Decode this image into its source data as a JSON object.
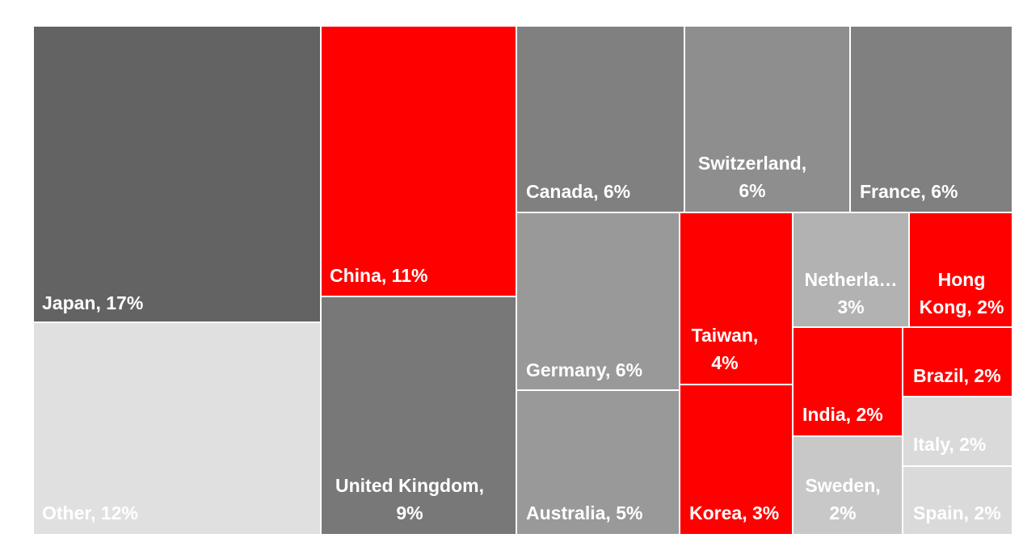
{
  "chart_data": {
    "type": "treemap",
    "title": "",
    "colors": {
      "highlight": "#ff0000",
      "gray_darkest": "#636363",
      "gray_dark": "#787878",
      "gray_mid": "#808080",
      "gray_mid_light": "#8e8e8e",
      "gray_light": "#999999",
      "gray_lighter": "#b2b2b2",
      "gray_pale": "#c8c8c8",
      "gray_palest": "#dadada",
      "gray_other": "#e0e0e0"
    },
    "items": [
      {
        "name": "Japan",
        "value": 17,
        "label_lines": [
          "Japan, 17%"
        ],
        "color_key": "gray_darkest"
      },
      {
        "name": "Other",
        "value": 12,
        "label_lines": [
          "Other, 12%"
        ],
        "color_key": "gray_other"
      },
      {
        "name": "China",
        "value": 11,
        "label_lines": [
          "China, 11%"
        ],
        "color_key": "highlight"
      },
      {
        "name": "United Kingdom",
        "value": 9,
        "label_lines": [
          "United Kingdom,",
          "9%"
        ],
        "color_key": "gray_dark"
      },
      {
        "name": "Canada",
        "value": 6,
        "label_lines": [
          "Canada, 6%"
        ],
        "color_key": "gray_mid"
      },
      {
        "name": "Switzerland",
        "value": 6,
        "label_lines": [
          "Switzerland,",
          "6%"
        ],
        "color_key": "gray_mid_light"
      },
      {
        "name": "France",
        "value": 6,
        "label_lines": [
          "France, 6%"
        ],
        "color_key": "gray_mid"
      },
      {
        "name": "Germany",
        "value": 6,
        "label_lines": [
          "Germany, 6%"
        ],
        "color_key": "gray_light"
      },
      {
        "name": "Australia",
        "value": 5,
        "label_lines": [
          "Australia, 5%"
        ],
        "color_key": "gray_light"
      },
      {
        "name": "Taiwan",
        "value": 4,
        "label_lines": [
          "Taiwan,",
          "4%"
        ],
        "color_key": "highlight"
      },
      {
        "name": "Korea",
        "value": 3,
        "label_lines": [
          "Korea, 3%"
        ],
        "color_key": "highlight"
      },
      {
        "name": "Netherlands",
        "value": 3,
        "label_lines": [
          "Netherla…",
          "3%"
        ],
        "color_key": "gray_lighter"
      },
      {
        "name": "Hong Kong",
        "value": 2,
        "label_lines": [
          "Hong",
          "Kong, 2%"
        ],
        "color_key": "highlight"
      },
      {
        "name": "India",
        "value": 2,
        "label_lines": [
          "India, 2%"
        ],
        "color_key": "highlight"
      },
      {
        "name": "Brazil",
        "value": 2,
        "label_lines": [
          "Brazil, 2%"
        ],
        "color_key": "highlight"
      },
      {
        "name": "Sweden",
        "value": 2,
        "label_lines": [
          "Sweden,",
          "2%"
        ],
        "color_key": "gray_pale"
      },
      {
        "name": "Italy",
        "value": 2,
        "label_lines": [
          "Italy, 2%"
        ],
        "color_key": "gray_palest"
      },
      {
        "name": "Spain",
        "value": 2,
        "label_lines": [
          "Spain, 2%"
        ],
        "color_key": "gray_palest"
      }
    ]
  }
}
